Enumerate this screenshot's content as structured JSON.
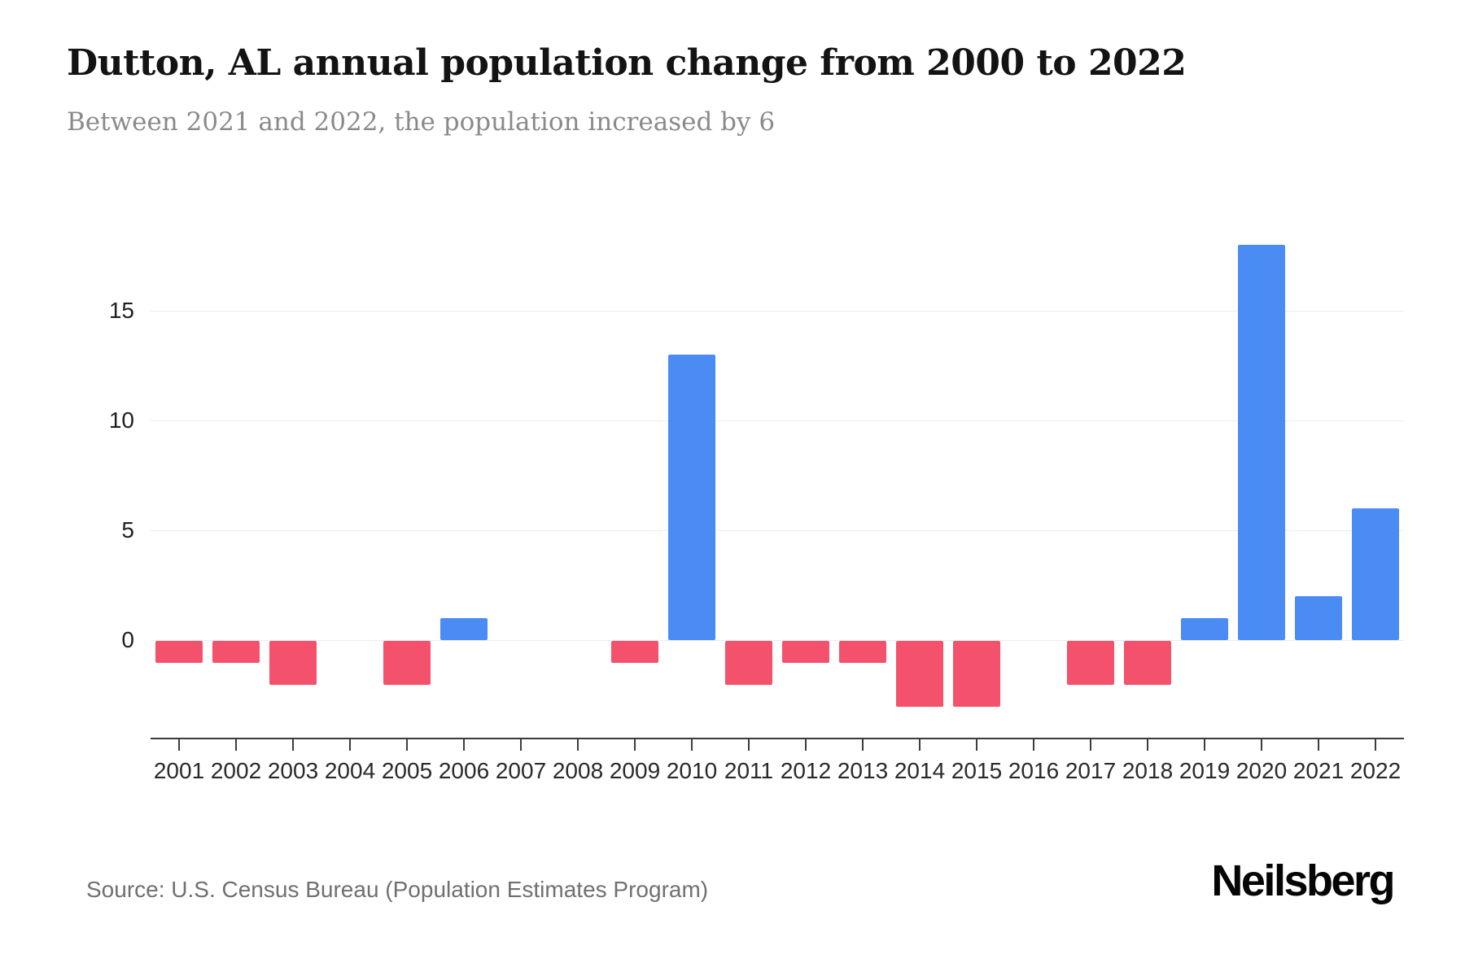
{
  "page": {
    "title": "Dutton, AL annual population change from 2000 to 2022",
    "subtitle": "Between 2021 and 2022, the population increased by 6",
    "source": "Source: U.S. Census Bureau (Population Estimates Program)",
    "brand": "Neilsberg"
  },
  "colors": {
    "positive": "#4a8bf4",
    "negative": "#f4516c",
    "grid": "#ececec",
    "axis": "#3c3c3c",
    "title_text": "#131313",
    "subtitle_text": "#8a8a8a",
    "source_text": "#707070"
  },
  "chart_data": {
    "type": "bar",
    "title": "Dutton, AL annual population change from 2000 to 2022",
    "subtitle": "Between 2021 and 2022, the population increased by 6",
    "categories": [
      "2001",
      "2002",
      "2003",
      "2004",
      "2005",
      "2006",
      "2007",
      "2008",
      "2009",
      "2010",
      "2011",
      "2012",
      "2013",
      "2014",
      "2015",
      "2016",
      "2017",
      "2018",
      "2019",
      "2020",
      "2021",
      "2022"
    ],
    "values": [
      -1,
      -1,
      -2,
      0,
      -2,
      1,
      0,
      0,
      -1,
      13,
      -2,
      -1,
      -1,
      -3,
      -3,
      0,
      -2,
      -2,
      1,
      18,
      2,
      6
    ],
    "xlabel": "",
    "ylabel": "",
    "yticks": [
      0,
      5,
      10,
      15
    ],
    "ylim": [
      -4.5,
      19.5
    ],
    "grid": true,
    "legend": false,
    "legend_position": "none",
    "positive_color": "#4a8bf4",
    "negative_color": "#f4516c"
  }
}
